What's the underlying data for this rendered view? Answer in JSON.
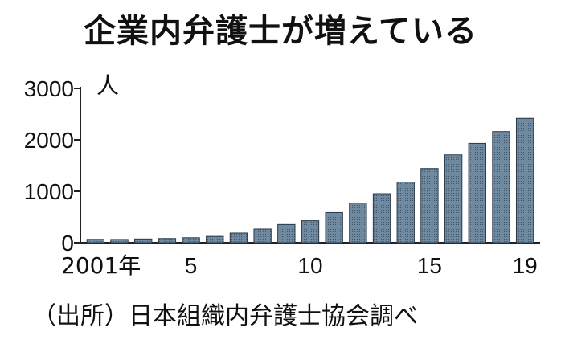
{
  "chart_data": {
    "type": "bar",
    "title": "企業内弁護士が増えている",
    "ylabel": "人",
    "source": "（出所）日本組織内弁護士協会調べ",
    "ylim": [
      0,
      3000
    ],
    "yticks": [
      "0",
      "1000",
      "2000",
      "3000"
    ],
    "yticks_values": [
      0,
      1000,
      2000,
      3000
    ],
    "categories": [
      "2001",
      "2002",
      "2003",
      "2004",
      "2005",
      "2006",
      "2007",
      "2008",
      "2009",
      "2010",
      "2011",
      "2012",
      "2013",
      "2014",
      "2015",
      "2016",
      "2017",
      "2018",
      "2019"
    ],
    "x_tick_labels": [
      {
        "category_index": 0,
        "text": "2001年"
      },
      {
        "category_index": 4,
        "text": "5"
      },
      {
        "category_index": 9,
        "text": "10"
      },
      {
        "category_index": 14,
        "text": "15"
      },
      {
        "category_index": 18,
        "text": "19"
      }
    ],
    "values": [
      66,
      64,
      73,
      82,
      97,
      123,
      188,
      266,
      354,
      428,
      587,
      771,
      953,
      1179,
      1442,
      1707,
      1931,
      2161,
      2418
    ],
    "grid": false,
    "bar_color": "#6f8aa0"
  }
}
